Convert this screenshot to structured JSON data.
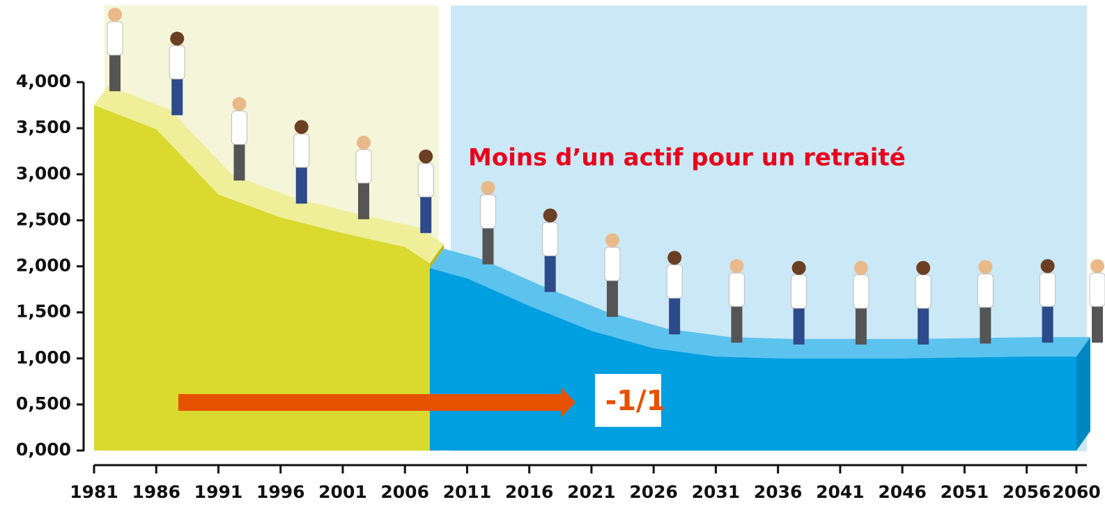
{
  "chart_data": {
    "type": "area",
    "annotations": [
      "Moins d’un actif pour un retraité",
      "-1/1"
    ],
    "series": [
      {
        "color": "#d9d92e",
        "x": [
          1981,
          1986,
          1991,
          1996,
          2001,
          2006,
          2008
        ],
        "values": [
          3.75,
          3.49,
          2.78,
          2.53,
          2.36,
          2.21,
          2.03
        ]
      },
      {
        "color": "#009fe0",
        "x": [
          2008,
          2011,
          2016,
          2021,
          2026,
          2031,
          2036,
          2041,
          2046,
          2051,
          2056,
          2060
        ],
        "values": [
          1.98,
          1.87,
          1.57,
          1.3,
          1.11,
          1.02,
          1.0,
          1.0,
          1.0,
          1.01,
          1.02,
          1.02
        ]
      }
    ],
    "xlim": [
      1981,
      2060
    ],
    "xticks": [
      1981,
      1986,
      1991,
      1996,
      2001,
      2006,
      2011,
      2016,
      2021,
      2026,
      2031,
      2036,
      2041,
      2046,
      2051,
      2056,
      2060
    ],
    "ylim": [
      0,
      4
    ],
    "yticks": [
      {
        "value": 0,
        "label": "0,000"
      },
      {
        "value": 0.5,
        "label": "0,500"
      },
      {
        "value": 1,
        "label": "1,000"
      },
      {
        "value": 1.5,
        "label": "1,500"
      },
      {
        "value": 2,
        "label": "2,000"
      },
      {
        "value": 2.5,
        "label": "2,500"
      },
      {
        "value": 3,
        "label": "3,000"
      },
      {
        "value": 3.5,
        "label": "3,500"
      },
      {
        "value": 4,
        "label": "4,000"
      }
    ]
  }
}
